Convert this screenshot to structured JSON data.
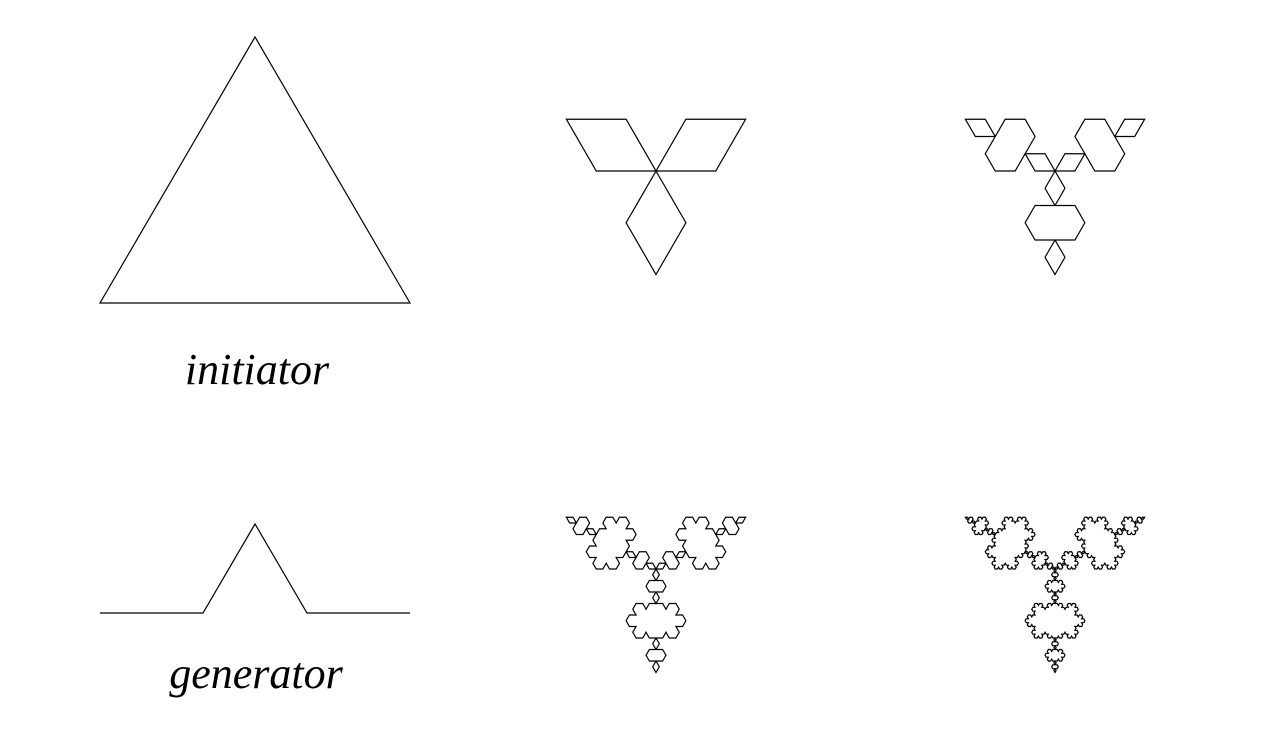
{
  "labels": {
    "initiator": "initiator",
    "generator": "generator"
  },
  "stroke_color": "#000000",
  "background_color": "#ffffff"
}
